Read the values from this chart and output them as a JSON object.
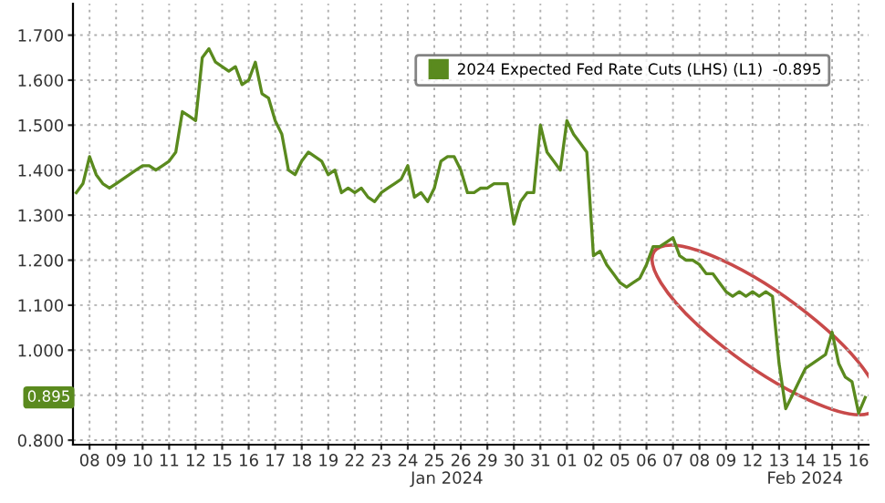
{
  "chart_data": {
    "type": "line",
    "categories": [
      null,
      null,
      "08",
      null,
      null,
      null,
      "09",
      null,
      null,
      null,
      "10",
      null,
      null,
      null,
      "11",
      null,
      null,
      null,
      "12",
      null,
      null,
      null,
      "15",
      null,
      null,
      null,
      "16",
      null,
      null,
      null,
      "17",
      null,
      null,
      null,
      "18",
      null,
      null,
      null,
      "19",
      null,
      null,
      null,
      "22",
      null,
      null,
      null,
      "23",
      null,
      null,
      null,
      "24",
      null,
      null,
      null,
      "25",
      null,
      null,
      null,
      "26",
      null,
      null,
      null,
      "29",
      null,
      null,
      null,
      "30",
      null,
      null,
      null,
      "31",
      null,
      null,
      null,
      "01",
      null,
      null,
      null,
      "02",
      null,
      null,
      null,
      "05",
      null,
      null,
      null,
      "06",
      null,
      null,
      null,
      "07",
      null,
      null,
      null,
      "08",
      null,
      null,
      null,
      "09",
      null,
      null,
      null,
      "12",
      null,
      null,
      null,
      "13",
      null,
      null,
      null,
      "14",
      null,
      null,
      null,
      "15",
      null,
      null,
      null,
      "16",
      null
    ],
    "series": [
      {
        "name": "2024 Expected Fed Rate Cuts (LHS) (L1)  -0.895",
        "color": "#5a8a1e",
        "values": [
          1.35,
          1.37,
          1.43,
          1.39,
          1.37,
          1.36,
          1.37,
          1.38,
          1.39,
          1.4,
          1.41,
          1.41,
          1.4,
          1.41,
          1.42,
          1.44,
          1.53,
          1.52,
          1.51,
          1.65,
          1.67,
          1.64,
          1.63,
          1.62,
          1.63,
          1.59,
          1.6,
          1.64,
          1.57,
          1.56,
          1.51,
          1.48,
          1.4,
          1.39,
          1.42,
          1.44,
          1.43,
          1.42,
          1.39,
          1.4,
          1.35,
          1.36,
          1.35,
          1.36,
          1.34,
          1.33,
          1.35,
          1.36,
          1.37,
          1.38,
          1.41,
          1.34,
          1.35,
          1.33,
          1.36,
          1.42,
          1.43,
          1.43,
          1.4,
          1.35,
          1.35,
          1.36,
          1.36,
          1.37,
          1.37,
          1.37,
          1.28,
          1.33,
          1.35,
          1.35,
          1.5,
          1.44,
          1.42,
          1.4,
          1.51,
          1.48,
          1.46,
          1.44,
          1.21,
          1.22,
          1.19,
          1.17,
          1.15,
          1.14,
          1.15,
          1.16,
          1.19,
          1.23,
          1.23,
          1.24,
          1.25,
          1.21,
          1.2,
          1.2,
          1.19,
          1.17,
          1.17,
          1.15,
          1.13,
          1.12,
          1.13,
          1.12,
          1.13,
          1.12,
          1.13,
          1.12,
          0.97,
          0.87,
          0.9,
          0.93,
          0.96,
          0.97,
          0.98,
          0.99,
          1.04,
          0.97,
          0.94,
          0.93,
          0.86,
          0.895
        ]
      }
    ],
    "ylim": [
      0.79,
      1.77
    ],
    "yticks": [
      {
        "value": 0.8,
        "label": "0.800"
      },
      {
        "value": 0.9,
        "label": null
      },
      {
        "value": 1.0,
        "label": "1.000"
      },
      {
        "value": 1.1,
        "label": "1.100"
      },
      {
        "value": 1.2,
        "label": "1.200"
      },
      {
        "value": 1.3,
        "label": "1.300"
      },
      {
        "value": 1.4,
        "label": "1.400"
      },
      {
        "value": 1.5,
        "label": "1.500"
      },
      {
        "value": 1.6,
        "label": "1.600"
      },
      {
        "value": 1.7,
        "label": "1.700"
      }
    ],
    "annotations": [
      "Jan 2024",
      "Feb 2024",
      "0.895"
    ],
    "grid": true,
    "legend": "top right",
    "marker": "none",
    "line_style": "solid"
  }
}
